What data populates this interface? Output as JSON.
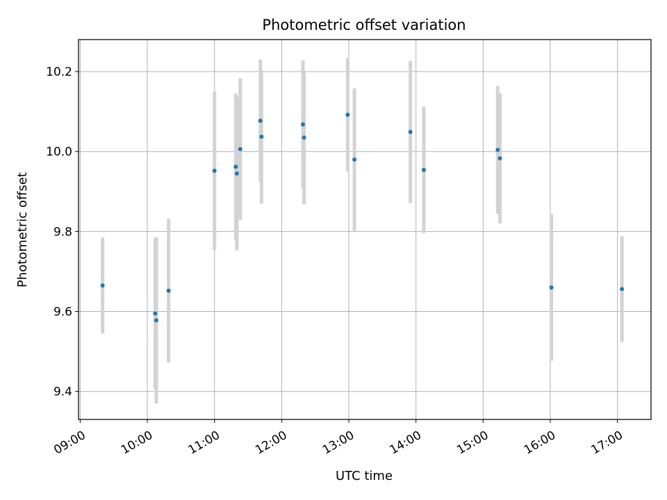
{
  "chart_data": {
    "type": "scatter",
    "title": "Photometric offset variation",
    "xlabel": "UTC time",
    "ylabel": "Photometric offset",
    "xlim": [
      "09:00",
      "17:30"
    ],
    "ylim": [
      9.33,
      10.28
    ],
    "grid": true,
    "x_ticks": [
      "09:00",
      "10:00",
      "11:00",
      "12:00",
      "13:00",
      "14:00",
      "15:00",
      "16:00",
      "17:00"
    ],
    "y_ticks": [
      9.4,
      9.6,
      9.8,
      10.0,
      10.2
    ],
    "y_tick_labels": [
      "9.4",
      "9.6",
      "9.8",
      "10.0",
      "10.2"
    ],
    "point_color": "#1f77b4",
    "errorbar_color": "#d3d3d3",
    "points": [
      {
        "x": "09:20",
        "y": 9.665,
        "err": 0.12
      },
      {
        "x": "10:07",
        "y": 9.595,
        "err": 0.187
      },
      {
        "x": "10:08",
        "y": 9.578,
        "err": 0.208
      },
      {
        "x": "10:19",
        "y": 9.652,
        "err": 0.18
      },
      {
        "x": "11:00",
        "y": 9.952,
        "err": 0.198
      },
      {
        "x": "11:19",
        "y": 9.962,
        "err": 0.183
      },
      {
        "x": "11:20",
        "y": 9.945,
        "err": 0.192
      },
      {
        "x": "11:23",
        "y": 10.006,
        "err": 0.177
      },
      {
        "x": "11:41",
        "y": 10.077,
        "err": 0.153
      },
      {
        "x": "11:42",
        "y": 10.037,
        "err": 0.167
      },
      {
        "x": "12:19",
        "y": 10.068,
        "err": 0.16
      },
      {
        "x": "12:20",
        "y": 10.035,
        "err": 0.167
      },
      {
        "x": "12:59",
        "y": 10.092,
        "err": 0.142
      },
      {
        "x": "13:05",
        "y": 9.98,
        "err": 0.178
      },
      {
        "x": "13:55",
        "y": 10.049,
        "err": 0.178
      },
      {
        "x": "14:07",
        "y": 9.954,
        "err": 0.158
      },
      {
        "x": "15:13",
        "y": 10.004,
        "err": 0.16
      },
      {
        "x": "15:15",
        "y": 9.983,
        "err": 0.163
      },
      {
        "x": "16:01",
        "y": 9.66,
        "err": 0.183
      },
      {
        "x": "17:04",
        "y": 9.656,
        "err": 0.132
      }
    ]
  }
}
